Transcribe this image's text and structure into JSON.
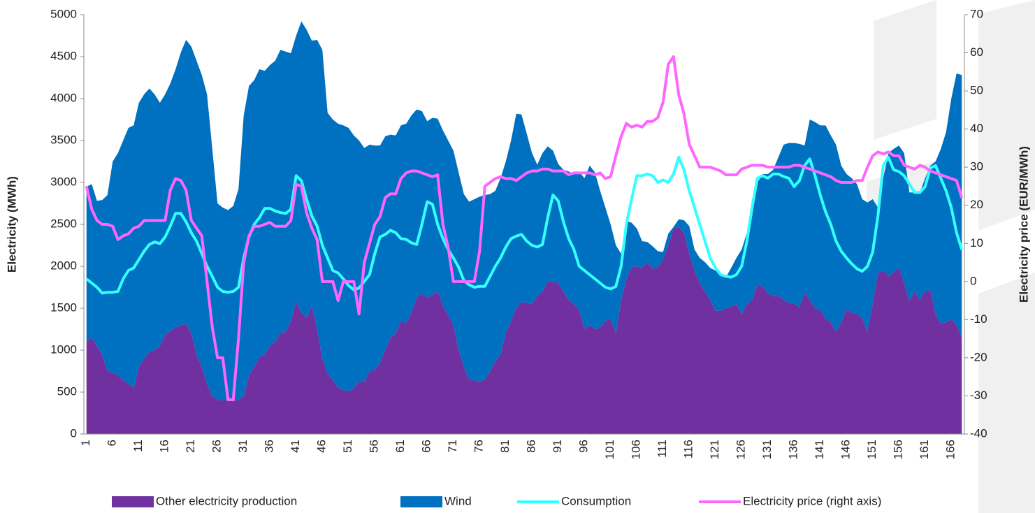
{
  "chart_data": {
    "type": "area",
    "y_label": "Electricity (MWh)",
    "y2_label": "Electricity price (EUR/MWh)",
    "categories": [
      "1",
      null,
      null,
      null,
      null,
      "6",
      null,
      null,
      null,
      null,
      "11",
      null,
      null,
      null,
      null,
      "16",
      null,
      null,
      null,
      null,
      "21",
      null,
      null,
      null,
      null,
      "26",
      null,
      null,
      null,
      null,
      "31",
      null,
      null,
      null,
      null,
      "36",
      null,
      null,
      null,
      null,
      "41",
      null,
      null,
      null,
      null,
      "46",
      null,
      null,
      null,
      null,
      "51",
      null,
      null,
      null,
      null,
      "56",
      null,
      null,
      null,
      null,
      "61",
      null,
      null,
      null,
      null,
      "66",
      null,
      null,
      null,
      null,
      "71",
      null,
      null,
      null,
      null,
      "76",
      null,
      null,
      null,
      null,
      "81",
      null,
      null,
      null,
      null,
      "86",
      null,
      null,
      null,
      null,
      "91",
      null,
      null,
      null,
      null,
      "96",
      null,
      null,
      null,
      null,
      "101",
      null,
      null,
      null,
      null,
      "106",
      null,
      null,
      null,
      null,
      "111",
      null,
      null,
      null,
      null,
      "116",
      null,
      null,
      null,
      null,
      "121",
      null,
      null,
      null,
      null,
      "126",
      null,
      null,
      null,
      null,
      "131",
      null,
      null,
      null,
      null,
      "136",
      null,
      null,
      null,
      null,
      "141",
      null,
      null,
      null,
      null,
      "146",
      null,
      null,
      null,
      null,
      "151",
      null,
      null,
      null,
      null,
      "156",
      null,
      null,
      null,
      null,
      "161",
      null,
      null,
      null,
      null,
      "166",
      null,
      null
    ],
    "ylim": [
      0,
      5000
    ],
    "yticks": [
      0,
      500,
      1000,
      1500,
      2000,
      2500,
      3000,
      3500,
      4000,
      4500,
      5000
    ],
    "y2lim": [
      -40,
      70
    ],
    "y2ticks": [
      -40,
      -30,
      -20,
      -10,
      0,
      10,
      20,
      30,
      40,
      50,
      60,
      70
    ],
    "stacked": true,
    "legend": "bottom",
    "series": [
      {
        "name": "Other electricity production",
        "type": "area",
        "color": "#7030a0",
        "values": [
          1100,
          1150,
          1050,
          950,
          750,
          730,
          700,
          640,
          600,
          550,
          800,
          900,
          980,
          1000,
          1050,
          1180,
          1230,
          1270,
          1300,
          1310,
          1200,
          950,
          800,
          600,
          450,
          410,
          400,
          400,
          390,
          410,
          450,
          700,
          800,
          920,
          950,
          1050,
          1100,
          1200,
          1220,
          1350,
          1580,
          1450,
          1380,
          1530,
          1250,
          900,
          720,
          640,
          560,
          520,
          510,
          550,
          630,
          620,
          750,
          770,
          850,
          1000,
          1150,
          1200,
          1350,
          1320,
          1450,
          1620,
          1680,
          1620,
          1660,
          1700,
          1530,
          1420,
          1300,
          1000,
          800,
          650,
          640,
          620,
          650,
          750,
          870,
          950,
          1200,
          1350,
          1500,
          1580,
          1560,
          1550,
          1650,
          1700,
          1820,
          1820,
          1800,
          1700,
          1600,
          1550,
          1480,
          1250,
          1300,
          1250,
          1270,
          1350,
          1370,
          1200,
          1600,
          1850,
          1990,
          2000,
          1980,
          2050,
          1970,
          1990,
          2080,
          2250,
          2450,
          2470,
          2400,
          2150,
          1950,
          1800,
          1700,
          1600,
          1470,
          1470,
          1500,
          1520,
          1550,
          1430,
          1550,
          1600,
          1780,
          1760,
          1680,
          1640,
          1650,
          1600,
          1560,
          1560,
          1510,
          1680,
          1600,
          1500,
          1480,
          1380,
          1330,
          1220,
          1330,
          1490,
          1450,
          1430,
          1380,
          1220,
          1550,
          1920,
          1950,
          1880,
          1930,
          1980,
          1800,
          1580,
          1700,
          1600,
          1700,
          1720,
          1430,
          1320,
          1330,
          1370,
          1300,
          1150
        ]
      },
      {
        "name": "Wind",
        "type": "area",
        "color": "#0070c0",
        "values": [
          1850,
          1830,
          1730,
          1840,
          2100,
          2520,
          2650,
          2860,
          3050,
          3130,
          3150,
          3150,
          3140,
          3050,
          2900,
          2870,
          2950,
          3080,
          3250,
          3390,
          3420,
          3500,
          3480,
          3450,
          2950,
          2340,
          2300,
          2270,
          2330,
          2510,
          3350,
          3450,
          3420,
          3430,
          3380,
          3350,
          3350,
          3380,
          3340,
          3190,
          3170,
          3470,
          3440,
          3160,
          3450,
          3680,
          3110,
          3110,
          3140,
          3160,
          3140,
          3010,
          2870,
          2790,
          2700,
          2670,
          2590,
          2550,
          2420,
          2360,
          2330,
          2380,
          2350,
          2250,
          2170,
          2110,
          2110,
          2060,
          2090,
          2080,
          2080,
          2120,
          2060,
          2120,
          2160,
          2210,
          2200,
          2110,
          2030,
          2100,
          2050,
          2150,
          2320,
          2230,
          2020,
          1800,
          1560,
          1650,
          1610,
          1560,
          1420,
          1450,
          1530,
          1550,
          1650,
          1800,
          1900,
          1870,
          1630,
          1350,
          1130,
          1050,
          550,
          690,
          530,
          450,
          320,
          240,
          270,
          190,
          90,
          140,
          20,
          90,
          150,
          330,
          250,
          300,
          350,
          380,
          480,
          430,
          370,
          460,
          550,
          770,
          850,
          1200,
          1220,
          1340,
          1420,
          1510,
          1650,
          1850,
          1910,
          1910,
          1950,
          1760,
          2150,
          2220,
          2200,
          2300,
          2230,
          2230,
          1870,
          1610,
          1600,
          1550,
          1420,
          1540,
          1250,
          780,
          1100,
          1470,
          1470,
          1460,
          1550,
          1300,
          1180,
          1280,
          1350,
          1480,
          1820,
          2080,
          2270,
          2630,
          3000,
          3130
        ]
      },
      {
        "name": "Consumption",
        "type": "line",
        "color": "#33ffff",
        "values": [
          1850,
          1800,
          1750,
          1680,
          1690,
          1690,
          1700,
          1850,
          1950,
          1980,
          2080,
          2180,
          2260,
          2290,
          2270,
          2350,
          2480,
          2630,
          2630,
          2530,
          2400,
          2300,
          2150,
          2000,
          1880,
          1750,
          1700,
          1690,
          1700,
          1750,
          2100,
          2350,
          2500,
          2580,
          2690,
          2690,
          2660,
          2640,
          2630,
          2680,
          3080,
          3020,
          2800,
          2600,
          2480,
          2250,
          2100,
          1950,
          1920,
          1850,
          1770,
          1720,
          1740,
          1820,
          1900,
          2150,
          2350,
          2380,
          2430,
          2400,
          2330,
          2320,
          2280,
          2260,
          2500,
          2770,
          2740,
          2500,
          2330,
          2200,
          2100,
          1990,
          1830,
          1780,
          1750,
          1760,
          1760,
          1880,
          2000,
          2100,
          2230,
          2330,
          2360,
          2380,
          2300,
          2250,
          2230,
          2260,
          2580,
          2850,
          2780,
          2530,
          2330,
          2200,
          2000,
          1950,
          1900,
          1850,
          1800,
          1750,
          1730,
          1760,
          2000,
          2500,
          2800,
          3080,
          3080,
          3100,
          3080,
          3000,
          3030,
          3000,
          3100,
          3300,
          3150,
          2900,
          2700,
          2500,
          2300,
          2100,
          1980,
          1900,
          1880,
          1870,
          1900,
          2000,
          2300,
          2700,
          3050,
          3080,
          3050,
          3100,
          3100,
          3070,
          3050,
          2950,
          3020,
          3200,
          3280,
          3080,
          2850,
          2650,
          2500,
          2300,
          2180,
          2100,
          2030,
          1970,
          1940,
          2000,
          2170,
          2600,
          3200,
          3300,
          3150,
          3130,
          3080,
          2980,
          2880,
          2880,
          2950,
          3170,
          3200,
          3050,
          2900,
          2700,
          2400,
          2200
        ]
      },
      {
        "name": "Electricity price (right axis)",
        "type": "line",
        "axis": "y2",
        "color": "#ff66ff",
        "values": [
          25,
          19,
          16,
          15,
          15,
          14.5,
          11,
          12,
          12.5,
          14,
          14.5,
          16,
          16,
          16,
          16,
          16,
          24,
          27,
          26.5,
          24,
          16,
          14,
          12,
          0,
          -12,
          -20,
          -20,
          -31,
          -31,
          -15,
          5,
          12,
          14.5,
          14.5,
          15,
          15.5,
          14.5,
          14.5,
          14.5,
          16,
          25.5,
          25,
          18,
          14,
          11,
          0,
          0,
          0,
          -5,
          0,
          0,
          0,
          -8.5,
          5,
          10,
          15,
          17,
          22,
          23,
          23,
          27,
          28.5,
          29,
          29,
          28.5,
          28,
          27.5,
          28,
          15,
          9,
          0,
          0,
          0,
          0,
          0,
          8,
          25,
          26,
          27,
          27.5,
          27,
          27,
          26.5,
          27.5,
          28.5,
          29,
          29,
          29.5,
          29.5,
          29,
          29,
          29,
          28,
          28.5,
          28.5,
          28.5,
          28.5,
          28,
          28.5,
          27,
          27.5,
          33,
          38,
          41.5,
          40.5,
          41,
          40.5,
          42,
          42,
          43,
          47,
          57,
          59,
          49,
          44,
          36,
          33,
          30,
          30,
          30,
          29.5,
          29,
          28,
          28,
          28,
          29.5,
          30,
          30.5,
          30.5,
          30.5,
          30,
          30,
          30,
          30,
          30,
          30.5,
          30.5,
          30,
          29.5,
          29,
          28.5,
          28,
          27.5,
          26.5,
          26,
          26,
          26,
          26.5,
          26.5,
          30,
          33,
          34,
          33.5,
          34,
          33,
          33,
          30.5,
          30,
          29.5,
          30.5,
          30,
          29,
          28.5,
          28,
          27.5,
          27,
          26.5,
          22
        ]
      }
    ]
  }
}
